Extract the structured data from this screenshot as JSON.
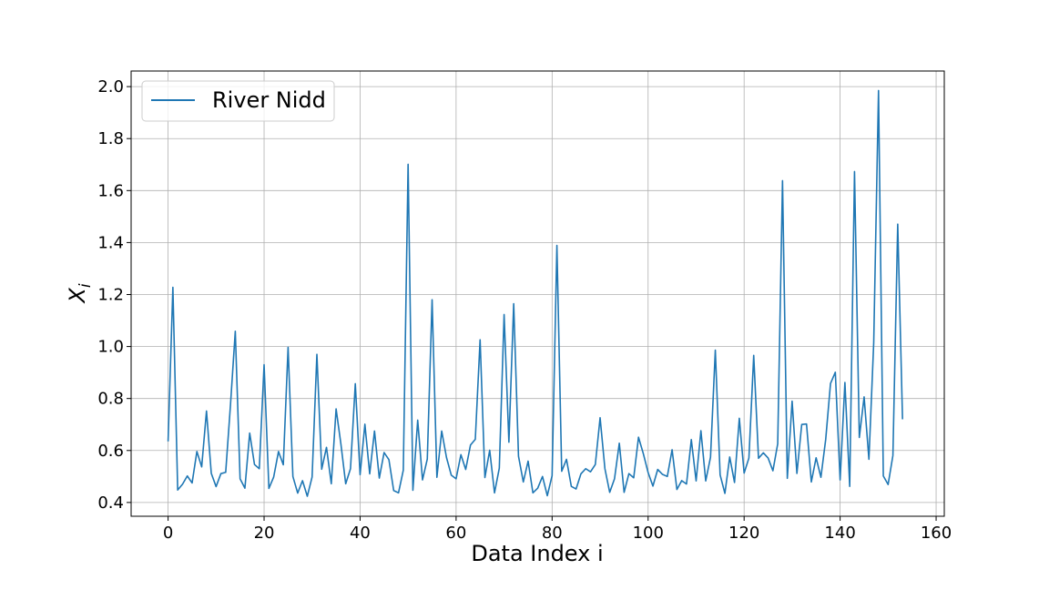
{
  "chart_data": {
    "type": "line",
    "title": "",
    "xlabel": "Data Index i",
    "ylabel": "X_i",
    "xlim": [
      -7.7,
      161.7
    ],
    "ylim": [
      0.347,
      2.06
    ],
    "xticks": [
      0,
      20,
      40,
      60,
      80,
      100,
      120,
      140,
      160
    ],
    "yticks": [
      0.4,
      0.6,
      0.8,
      1.0,
      1.2,
      1.4,
      1.6,
      1.8,
      2.0
    ],
    "xtick_labels": [
      "0",
      "20",
      "40",
      "60",
      "80",
      "100",
      "120",
      "140",
      "160"
    ],
    "ytick_labels": [
      "0.4",
      "0.6",
      "0.8",
      "1.0",
      "1.2",
      "1.4",
      "1.6",
      "1.8",
      "2.0"
    ],
    "grid": true,
    "legend_position": "top-left",
    "series": [
      {
        "name": "River Nidd",
        "color": "#1f77b4",
        "x": [
          0,
          1,
          2,
          3,
          4,
          5,
          6,
          7,
          8,
          9,
          10,
          11,
          12,
          13,
          14,
          15,
          16,
          17,
          18,
          19,
          20,
          21,
          22,
          23,
          24,
          25,
          26,
          27,
          28,
          29,
          30,
          31,
          32,
          33,
          34,
          35,
          36,
          37,
          38,
          39,
          40,
          41,
          42,
          43,
          44,
          45,
          46,
          47,
          48,
          49,
          50,
          51,
          52,
          53,
          54,
          55,
          56,
          57,
          58,
          59,
          60,
          61,
          62,
          63,
          64,
          65,
          66,
          67,
          68,
          69,
          70,
          71,
          72,
          73,
          74,
          75,
          76,
          77,
          78,
          79,
          80,
          81,
          82,
          83,
          84,
          85,
          86,
          87,
          88,
          89,
          90,
          91,
          92,
          93,
          94,
          95,
          96,
          97,
          98,
          99,
          100,
          101,
          102,
          103,
          104,
          105,
          106,
          107,
          108,
          109,
          110,
          111,
          112,
          113,
          114,
          115,
          116,
          117,
          118,
          119,
          120,
          121,
          122,
          123,
          124,
          125,
          126,
          127,
          128,
          129,
          130,
          131,
          132,
          133,
          134,
          135,
          136,
          137,
          138,
          139,
          140,
          141,
          142,
          143,
          144,
          145,
          146,
          147,
          148,
          149,
          150,
          151,
          152,
          153
        ],
        "values": [
          0.635,
          1.228,
          0.448,
          0.47,
          0.502,
          0.475,
          0.596,
          0.537,
          0.752,
          0.512,
          0.461,
          0.511,
          0.516,
          0.776,
          1.059,
          0.491,
          0.455,
          0.667,
          0.546,
          0.53,
          0.93,
          0.454,
          0.498,
          0.596,
          0.545,
          0.997,
          0.5,
          0.436,
          0.484,
          0.424,
          0.498,
          0.97,
          0.528,
          0.612,
          0.472,
          0.76,
          0.625,
          0.472,
          0.53,
          0.857,
          0.507,
          0.701,
          0.51,
          0.675,
          0.494,
          0.592,
          0.565,
          0.446,
          0.437,
          0.524,
          1.701,
          0.447,
          0.717,
          0.487,
          0.567,
          1.18,
          0.497,
          0.675,
          0.573,
          0.505,
          0.491,
          0.584,
          0.527,
          0.621,
          0.643,
          1.026,
          0.496,
          0.601,
          0.437,
          0.532,
          1.123,
          0.632,
          1.165,
          0.578,
          0.479,
          0.559,
          0.437,
          0.455,
          0.5,
          0.426,
          0.503,
          1.389,
          0.52,
          0.566,
          0.462,
          0.452,
          0.51,
          0.53,
          0.518,
          0.546,
          0.726,
          0.53,
          0.439,
          0.491,
          0.628,
          0.439,
          0.511,
          0.495,
          0.651,
          0.588,
          0.515,
          0.463,
          0.527,
          0.508,
          0.5,
          0.603,
          0.45,
          0.484,
          0.471,
          0.642,
          0.483,
          0.676,
          0.483,
          0.574,
          0.986,
          0.506,
          0.435,
          0.575,
          0.477,
          0.724,
          0.513,
          0.571,
          0.966,
          0.57,
          0.591,
          0.571,
          0.522,
          0.626,
          1.638,
          0.493,
          0.79,
          0.512,
          0.7,
          0.702,
          0.479,
          0.572,
          0.497,
          0.643,
          0.858,
          0.901,
          0.487,
          0.862,
          0.462,
          1.673,
          0.65,
          0.806,
          0.566,
          1.015,
          1.985,
          0.502,
          0.469,
          0.581,
          1.471,
          0.72
        ]
      }
    ]
  }
}
